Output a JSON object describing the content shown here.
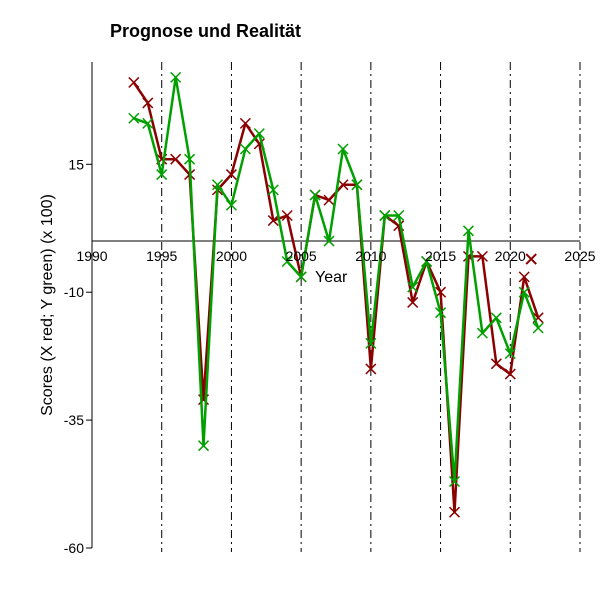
{
  "chart_data": {
    "type": "line",
    "title": "Prognose und Realität",
    "xlabel": "Year",
    "ylabel": "Scores (X red; Y green) (x 100)",
    "xlim": [
      1990,
      2025
    ],
    "ylim": [
      -60,
      35
    ],
    "xticks": [
      1990,
      1995,
      2000,
      2005,
      2010,
      2015,
      2020,
      2025
    ],
    "yticks": [
      15,
      -10,
      -35,
      -60
    ],
    "vlines": [
      1995,
      2000,
      2005,
      2010,
      2015,
      2020,
      2025
    ],
    "grid": false,
    "legend": "none",
    "series": [
      {
        "color": "#8b0000",
        "marker": "x",
        "x": [
          1993,
          1994,
          1995,
          1996,
          1997,
          1998,
          1999,
          2000,
          2001,
          2002,
          2003,
          2004,
          2005,
          2006,
          2007,
          2008,
          2009,
          2010,
          2011,
          2012,
          2013,
          2014,
          2015,
          2016,
          2017,
          2018,
          2019,
          2020,
          2021,
          2022
        ],
        "y": [
          31,
          27,
          16,
          16,
          13,
          -31,
          10,
          13,
          23,
          19,
          4,
          5,
          -7,
          9,
          8,
          11,
          11,
          -25,
          5,
          3,
          -12,
          -4,
          -10,
          -53,
          -3,
          -3,
          -24,
          -26,
          -7,
          -15
        ]
      },
      {
        "color": "#00a000",
        "marker": "x",
        "x": [
          1993,
          1994,
          1995,
          1996,
          1997,
          1998,
          1999,
          2000,
          2001,
          2002,
          2003,
          2004,
          2005,
          2006,
          2007,
          2008,
          2009,
          2010,
          2011,
          2012,
          2013,
          2014,
          2015,
          2016,
          2017,
          2018,
          2019,
          2020,
          2021,
          2022
        ],
        "y": [
          24,
          23,
          13,
          32,
          16,
          -40,
          11,
          7,
          18,
          21,
          10,
          -4,
          -7,
          9,
          0,
          18,
          11,
          -20,
          5,
          5,
          -9,
          -4,
          -14,
          -47,
          2,
          -18,
          -15,
          -22,
          -10,
          -17
        ]
      }
    ]
  }
}
